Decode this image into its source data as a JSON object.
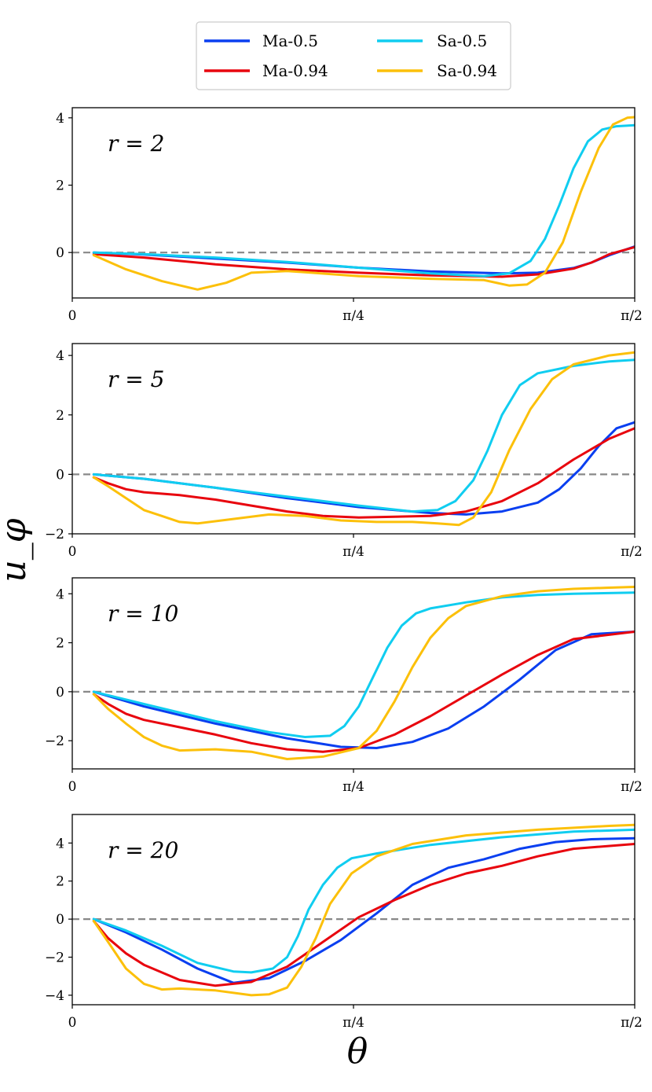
{
  "chart_data": {
    "type": "line",
    "ylabel": "u_φ",
    "xlabel": "θ",
    "xlim": [
      0,
      1.5708
    ],
    "x_ticks": [
      {
        "value": 0,
        "label": "0"
      },
      {
        "value": 0.7854,
        "label": "π/4"
      },
      {
        "value": 1.5708,
        "label": "π/2"
      }
    ],
    "legend": {
      "position": "top-center",
      "entries": [
        {
          "name": "Ma-0.5",
          "color": "#0a3ff0"
        },
        {
          "name": "Ma-0.94",
          "color": "#e8050e"
        },
        {
          "name": "Sa-0.5",
          "color": "#10cdf0"
        },
        {
          "name": "Sa-0.94",
          "color": "#fcc00a"
        }
      ]
    },
    "reference_line": {
      "y": 0,
      "style": "dashed",
      "color": "#888888"
    },
    "panels": [
      {
        "label": "r = 2",
        "ylim": [
          -1.35,
          4.3
        ],
        "y_ticks": [
          0,
          2,
          4
        ],
        "series": [
          {
            "name": "Ma-0.5",
            "color": "#0a3ff0",
            "x": [
              0.06,
              0.2,
              0.4,
              0.6,
              0.8,
              1.0,
              1.2,
              1.3,
              1.4,
              1.45,
              1.5,
              1.5708
            ],
            "y": [
              0,
              -0.06,
              -0.18,
              -0.3,
              -0.45,
              -0.56,
              -0.62,
              -0.6,
              -0.46,
              -0.3,
              -0.08,
              0.18
            ]
          },
          {
            "name": "Ma-0.94",
            "color": "#e8050e",
            "x": [
              0.06,
              0.2,
              0.4,
              0.6,
              0.8,
              1.0,
              1.2,
              1.3,
              1.4,
              1.45,
              1.5,
              1.5708
            ],
            "y": [
              -0.05,
              -0.15,
              -0.35,
              -0.5,
              -0.6,
              -0.68,
              -0.72,
              -0.65,
              -0.48,
              -0.3,
              -0.05,
              0.16
            ]
          },
          {
            "name": "Sa-0.5",
            "color": "#10cdf0",
            "x": [
              0.06,
              0.2,
              0.4,
              0.6,
              0.8,
              1.0,
              1.15,
              1.22,
              1.28,
              1.32,
              1.36,
              1.4,
              1.44,
              1.48,
              1.52,
              1.5708
            ],
            "y": [
              0,
              -0.05,
              -0.15,
              -0.28,
              -0.45,
              -0.62,
              -0.7,
              -0.62,
              -0.25,
              0.4,
              1.4,
              2.5,
              3.3,
              3.65,
              3.75,
              3.78
            ]
          },
          {
            "name": "Sa-0.94",
            "color": "#fcc00a",
            "x": [
              0.06,
              0.15,
              0.25,
              0.35,
              0.43,
              0.5,
              0.6,
              0.8,
              1.0,
              1.15,
              1.22,
              1.27,
              1.32,
              1.37,
              1.42,
              1.47,
              1.51,
              1.55,
              1.5708
            ],
            "y": [
              -0.08,
              -0.5,
              -0.85,
              -1.1,
              -0.9,
              -0.6,
              -0.55,
              -0.7,
              -0.78,
              -0.82,
              -0.98,
              -0.95,
              -0.6,
              0.3,
              1.8,
              3.1,
              3.8,
              4.0,
              4.02
            ]
          }
        ]
      },
      {
        "label": "r = 5",
        "ylim": [
          -2.0,
          4.4
        ],
        "y_ticks": [
          -2,
          0,
          2,
          4
        ],
        "series": [
          {
            "name": "Ma-0.5",
            "color": "#0a3ff0",
            "x": [
              0.06,
              0.2,
              0.4,
              0.6,
              0.8,
              1.0,
              1.1,
              1.2,
              1.3,
              1.36,
              1.42,
              1.47,
              1.52,
              1.5708
            ],
            "y": [
              0,
              -0.15,
              -0.45,
              -0.8,
              -1.1,
              -1.3,
              -1.35,
              -1.25,
              -0.95,
              -0.5,
              0.2,
              0.95,
              1.55,
              1.75
            ]
          },
          {
            "name": "Ma-0.94",
            "color": "#e8050e",
            "x": [
              0.06,
              0.1,
              0.15,
              0.2,
              0.3,
              0.4,
              0.5,
              0.6,
              0.7,
              0.8,
              1.0,
              1.1,
              1.2,
              1.3,
              1.4,
              1.5,
              1.5708
            ],
            "y": [
              -0.1,
              -0.3,
              -0.5,
              -0.6,
              -0.7,
              -0.85,
              -1.05,
              -1.25,
              -1.4,
              -1.45,
              -1.4,
              -1.25,
              -0.9,
              -0.3,
              0.5,
              1.2,
              1.55
            ]
          },
          {
            "name": "Sa-0.5",
            "color": "#10cdf0",
            "x": [
              0.06,
              0.2,
              0.4,
              0.6,
              0.8,
              0.95,
              1.02,
              1.07,
              1.12,
              1.16,
              1.2,
              1.25,
              1.3,
              1.4,
              1.5,
              1.5708
            ],
            "y": [
              0,
              -0.15,
              -0.45,
              -0.75,
              -1.05,
              -1.25,
              -1.2,
              -0.9,
              -0.2,
              0.8,
              2.0,
              3.0,
              3.4,
              3.65,
              3.8,
              3.85
            ]
          },
          {
            "name": "Sa-0.94",
            "color": "#fcc00a",
            "x": [
              0.06,
              0.1,
              0.15,
              0.2,
              0.25,
              0.3,
              0.35,
              0.45,
              0.55,
              0.65,
              0.75,
              0.85,
              0.95,
              1.02,
              1.08,
              1.12,
              1.17,
              1.22,
              1.28,
              1.34,
              1.4,
              1.5,
              1.5708
            ],
            "y": [
              -0.1,
              -0.4,
              -0.8,
              -1.2,
              -1.4,
              -1.6,
              -1.65,
              -1.5,
              -1.35,
              -1.4,
              -1.55,
              -1.6,
              -1.6,
              -1.65,
              -1.7,
              -1.45,
              -0.6,
              0.8,
              2.2,
              3.2,
              3.7,
              4.0,
              4.1
            ]
          }
        ]
      },
      {
        "label": "r = 10",
        "ylim": [
          -3.15,
          4.65
        ],
        "y_ticks": [
          -2,
          0,
          2,
          4
        ],
        "series": [
          {
            "name": "Ma-0.5",
            "color": "#0a3ff0",
            "x": [
              0.06,
              0.2,
              0.4,
              0.6,
              0.75,
              0.85,
              0.95,
              1.05,
              1.15,
              1.25,
              1.35,
              1.45,
              1.5708
            ],
            "y": [
              0,
              -0.6,
              -1.3,
              -1.9,
              -2.25,
              -2.3,
              -2.05,
              -1.5,
              -0.6,
              0.5,
              1.7,
              2.35,
              2.45
            ]
          },
          {
            "name": "Ma-0.94",
            "color": "#e8050e",
            "x": [
              0.06,
              0.1,
              0.15,
              0.2,
              0.3,
              0.4,
              0.5,
              0.6,
              0.7,
              0.8,
              0.9,
              1.0,
              1.1,
              1.2,
              1.3,
              1.4,
              1.5708
            ],
            "y": [
              -0.1,
              -0.5,
              -0.9,
              -1.15,
              -1.45,
              -1.75,
              -2.1,
              -2.35,
              -2.45,
              -2.3,
              -1.75,
              -1.0,
              -0.15,
              0.7,
              1.5,
              2.15,
              2.45
            ]
          },
          {
            "name": "Sa-0.5",
            "color": "#10cdf0",
            "x": [
              0.06,
              0.2,
              0.4,
              0.55,
              0.65,
              0.72,
              0.76,
              0.8,
              0.84,
              0.88,
              0.92,
              0.96,
              1.0,
              1.1,
              1.2,
              1.3,
              1.4,
              1.5708
            ],
            "y": [
              0,
              -0.5,
              -1.2,
              -1.65,
              -1.85,
              -1.8,
              -1.4,
              -0.6,
              0.6,
              1.8,
              2.7,
              3.2,
              3.4,
              3.65,
              3.85,
              3.95,
              4.0,
              4.05
            ]
          },
          {
            "name": "Sa-0.94",
            "color": "#fcc00a",
            "x": [
              0.06,
              0.1,
              0.15,
              0.2,
              0.25,
              0.3,
              0.4,
              0.5,
              0.6,
              0.7,
              0.8,
              0.85,
              0.9,
              0.95,
              1.0,
              1.05,
              1.1,
              1.2,
              1.3,
              1.4,
              1.5,
              1.5708
            ],
            "y": [
              -0.1,
              -0.7,
              -1.3,
              -1.85,
              -2.2,
              -2.4,
              -2.35,
              -2.45,
              -2.75,
              -2.65,
              -2.3,
              -1.6,
              -0.4,
              1.0,
              2.2,
              3.0,
              3.5,
              3.9,
              4.1,
              4.2,
              4.25,
              4.28
            ]
          }
        ]
      },
      {
        "label": "r = 20",
        "ylim": [
          -4.5,
          5.5
        ],
        "y_ticks": [
          -4,
          -2,
          0,
          2,
          4
        ],
        "series": [
          {
            "name": "Ma-0.5",
            "color": "#0a3ff0",
            "x": [
              0.06,
              0.15,
              0.25,
              0.35,
              0.45,
              0.55,
              0.65,
              0.75,
              0.85,
              0.95,
              1.05,
              1.15,
              1.25,
              1.35,
              1.45,
              1.5708
            ],
            "y": [
              0,
              -0.7,
              -1.6,
              -2.6,
              -3.35,
              -3.1,
              -2.2,
              -1.1,
              0.3,
              1.8,
              2.7,
              3.15,
              3.7,
              4.05,
              4.2,
              4.25
            ]
          },
          {
            "name": "Ma-0.94",
            "color": "#e8050e",
            "x": [
              0.06,
              0.1,
              0.15,
              0.2,
              0.3,
              0.4,
              0.5,
              0.6,
              0.7,
              0.8,
              0.9,
              1.0,
              1.1,
              1.2,
              1.3,
              1.4,
              1.5708
            ],
            "y": [
              -0.1,
              -1.0,
              -1.8,
              -2.4,
              -3.2,
              -3.5,
              -3.3,
              -2.5,
              -1.2,
              0.1,
              1.0,
              1.8,
              2.4,
              2.8,
              3.3,
              3.7,
              3.95
            ]
          },
          {
            "name": "Sa-0.5",
            "color": "#10cdf0",
            "x": [
              0.06,
              0.15,
              0.25,
              0.35,
              0.45,
              0.5,
              0.56,
              0.6,
              0.63,
              0.66,
              0.7,
              0.74,
              0.78,
              0.85,
              1.0,
              1.2,
              1.4,
              1.5708
            ],
            "y": [
              0,
              -0.6,
              -1.4,
              -2.3,
              -2.75,
              -2.8,
              -2.6,
              -2.0,
              -0.9,
              0.5,
              1.8,
              2.7,
              3.2,
              3.45,
              3.9,
              4.3,
              4.6,
              4.7
            ]
          },
          {
            "name": "Sa-0.94",
            "color": "#fcc00a",
            "x": [
              0.06,
              0.1,
              0.15,
              0.2,
              0.25,
              0.3,
              0.4,
              0.5,
              0.55,
              0.6,
              0.64,
              0.68,
              0.72,
              0.78,
              0.85,
              0.95,
              1.1,
              1.3,
              1.5,
              1.5708
            ],
            "y": [
              -0.1,
              -1.2,
              -2.6,
              -3.4,
              -3.7,
              -3.65,
              -3.75,
              -4.0,
              -3.95,
              -3.6,
              -2.5,
              -1.0,
              0.8,
              2.4,
              3.3,
              3.95,
              4.4,
              4.7,
              4.9,
              4.95
            ]
          }
        ]
      }
    ]
  }
}
